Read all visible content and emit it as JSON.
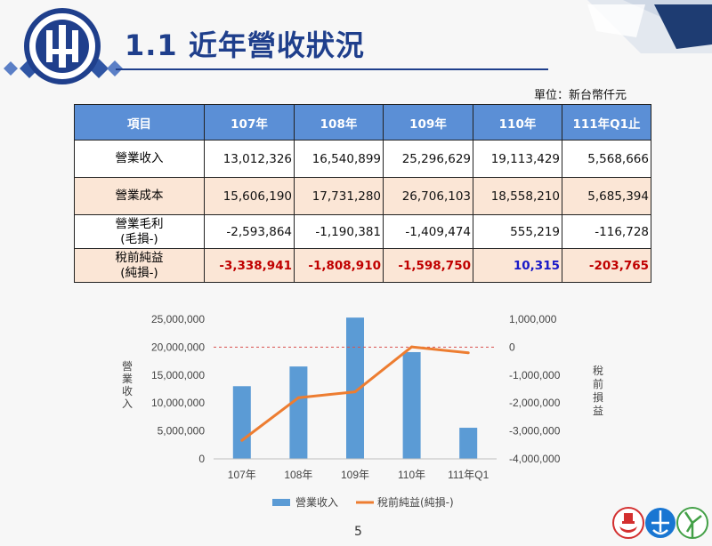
{
  "slide": {
    "title": "1.1 近年營收狀況",
    "unit_label": "單位：新台幣仟元",
    "page_number": "5"
  },
  "colors": {
    "title_blue": "#1f3f8c",
    "header_blue": "#5b8fd6",
    "row_peach": "#fbe6d6",
    "negative_red": "#c00000",
    "positive_blue": "#1919c8",
    "bar_blue": "#5b9bd5",
    "line_orange": "#ed7d31"
  },
  "table": {
    "headers": [
      "項目",
      "107年",
      "108年",
      "109年",
      "110年",
      "111年Q1止"
    ],
    "rows": [
      {
        "label": [
          "營業收入"
        ],
        "values": [
          "13,012,326",
          "16,540,899",
          "25,296,629",
          "19,113,429",
          "5,568,666"
        ],
        "styles": [
          "",
          "",
          "",
          "",
          ""
        ]
      },
      {
        "label": [
          "營業成本"
        ],
        "values": [
          "15,606,190",
          "17,731,280",
          "26,706,103",
          "18,558,210",
          "5,685,394"
        ],
        "styles": [
          "",
          "",
          "",
          "",
          ""
        ]
      },
      {
        "label": [
          "營業毛利",
          "(毛損-)"
        ],
        "values": [
          "-2,593,864",
          "-1,190,381",
          "-1,409,474",
          "555,219",
          "-116,728"
        ],
        "styles": [
          "",
          "",
          "",
          "",
          ""
        ]
      },
      {
        "label": [
          "稅前純益",
          "(純損-)"
        ],
        "values": [
          "-3,338,941",
          "-1,808,910",
          "-1,598,750",
          "10,315",
          "-203,765"
        ],
        "styles": [
          "neg",
          "neg",
          "neg",
          "pos",
          "neg"
        ]
      }
    ]
  },
  "chart_data": {
    "type": "bar",
    "categories": [
      "107年",
      "108年",
      "109年",
      "110年",
      "111年Q1"
    ],
    "series": [
      {
        "name": "營業收入",
        "type": "bar",
        "axis": "left",
        "values": [
          13012326,
          16540899,
          25296629,
          19113429,
          5568666
        ]
      },
      {
        "name": "稅前純益(純損-)",
        "type": "line",
        "axis": "right",
        "values": [
          -3338941,
          -1808910,
          -1598750,
          10315,
          -203765
        ]
      }
    ],
    "ylabel": "營業收入",
    "y2label": "稅前損益",
    "ylim": [
      0,
      25000000
    ],
    "y2lim": [
      -4000000,
      1000000
    ],
    "yticks": [
      "0",
      "5,000,000",
      "10,000,000",
      "15,000,000",
      "20,000,000",
      "25,000,000"
    ],
    "y2ticks": [
      "-4,000,000",
      "-3,000,000",
      "-2,000,000",
      "-1,000,000",
      "0",
      "1,000,000"
    ],
    "grid": false,
    "reference_line": {
      "axis": "right",
      "value": 0,
      "style": "dashed",
      "color": "#d9534f"
    },
    "legend_position": "bottom"
  }
}
